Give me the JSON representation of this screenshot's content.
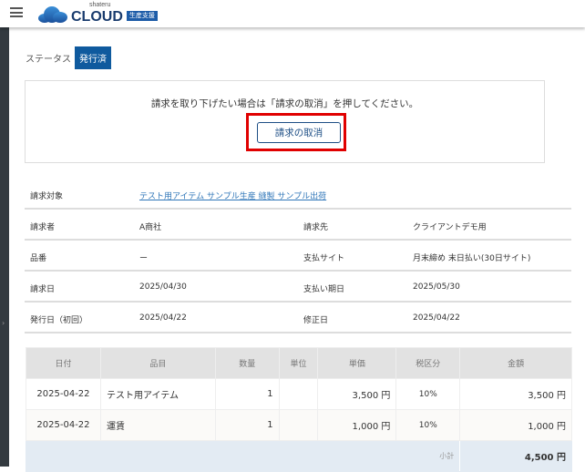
{
  "header": {
    "logo_small": "shateru",
    "logo_main": "CLOUD",
    "logo_badge": "生産支援"
  },
  "status": {
    "label": "ステータス",
    "value": "発行済"
  },
  "cancel": {
    "message": "請求を取り下げたい場合は「請求の取消」を押してください。",
    "button": "請求の取消"
  },
  "info": {
    "target_label": "請求対象",
    "target_value": "テスト用アイテム サンプル生産 縫製 サンプル出荷",
    "rows": [
      {
        "l1": "請求者",
        "v1": "A商社",
        "l2": "請求先",
        "v2": "クライアントデモ用"
      },
      {
        "l1": "品番",
        "v1": "ー",
        "l2": "支払サイト",
        "v2": "月末締め 末日払い(30日サイト)"
      },
      {
        "l1": "請求日",
        "v1": "2025/04/30",
        "l2": "支払い期日",
        "v2": "2025/05/30"
      },
      {
        "l1": "発行日（初回）",
        "v1": "2025/04/22",
        "l2": "修正日",
        "v2": "2025/04/22"
      }
    ]
  },
  "table": {
    "headers": [
      "日付",
      "品目",
      "数量",
      "単位",
      "単価",
      "税区分",
      "金額"
    ],
    "rows": [
      {
        "date": "2025-04-22",
        "item": "テスト用アイテム",
        "qty": "1",
        "unit": "",
        "price": "3,500 円",
        "tax": "10%",
        "amount": "3,500 円"
      },
      {
        "date": "2025-04-22",
        "item": "運賃",
        "qty": "1",
        "unit": "",
        "price": "1,000 円",
        "tax": "10%",
        "amount": "1,000 円"
      }
    ],
    "subtotal_label": "小計",
    "subtotal_value": "4,500 円"
  }
}
